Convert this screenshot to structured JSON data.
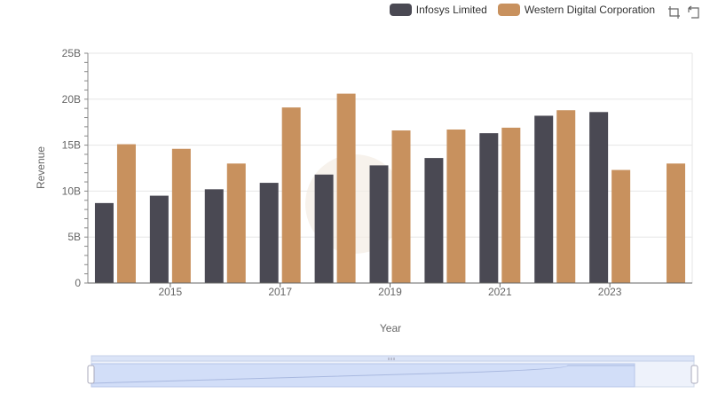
{
  "legend": [
    {
      "label": "Infosys Limited",
      "color": "#4a4953"
    },
    {
      "label": "Western Digital Corporation",
      "color": "#c8915e"
    }
  ],
  "toolbox": [
    {
      "icon": "zoom-select-icon"
    },
    {
      "icon": "zoom-reset-icon"
    }
  ],
  "chart_data": {
    "type": "bar",
    "categories": [
      "2014",
      "2015",
      "2016",
      "2017",
      "2018",
      "2019",
      "2020",
      "2021",
      "2022",
      "2023",
      "2024"
    ],
    "x_tick_labels": [
      "2015",
      "2017",
      "2019",
      "2021",
      "2023"
    ],
    "series": [
      {
        "name": "Infosys Limited",
        "color": "#4a4953",
        "values": [
          8.7,
          9.5,
          10.2,
          10.9,
          11.8,
          12.8,
          13.6,
          16.3,
          18.2,
          18.6,
          null
        ]
      },
      {
        "name": "Western Digital Corporation",
        "color": "#c8915e",
        "values": [
          15.1,
          14.6,
          13.0,
          19.1,
          20.6,
          16.6,
          16.7,
          16.9,
          18.8,
          12.3,
          13.0
        ]
      }
    ],
    "xlabel": "Year",
    "ylabel": "Revenue",
    "ylim": [
      0,
      25
    ],
    "y_tick_labels": [
      "0",
      "5B",
      "10B",
      "15B",
      "20B",
      "25B"
    ],
    "y_ticks": [
      0,
      5,
      10,
      15,
      20,
      25
    ],
    "grid": true,
    "legend_position": "top-right",
    "data_zoom": {
      "range_start": 0,
      "range_end": 100
    }
  }
}
